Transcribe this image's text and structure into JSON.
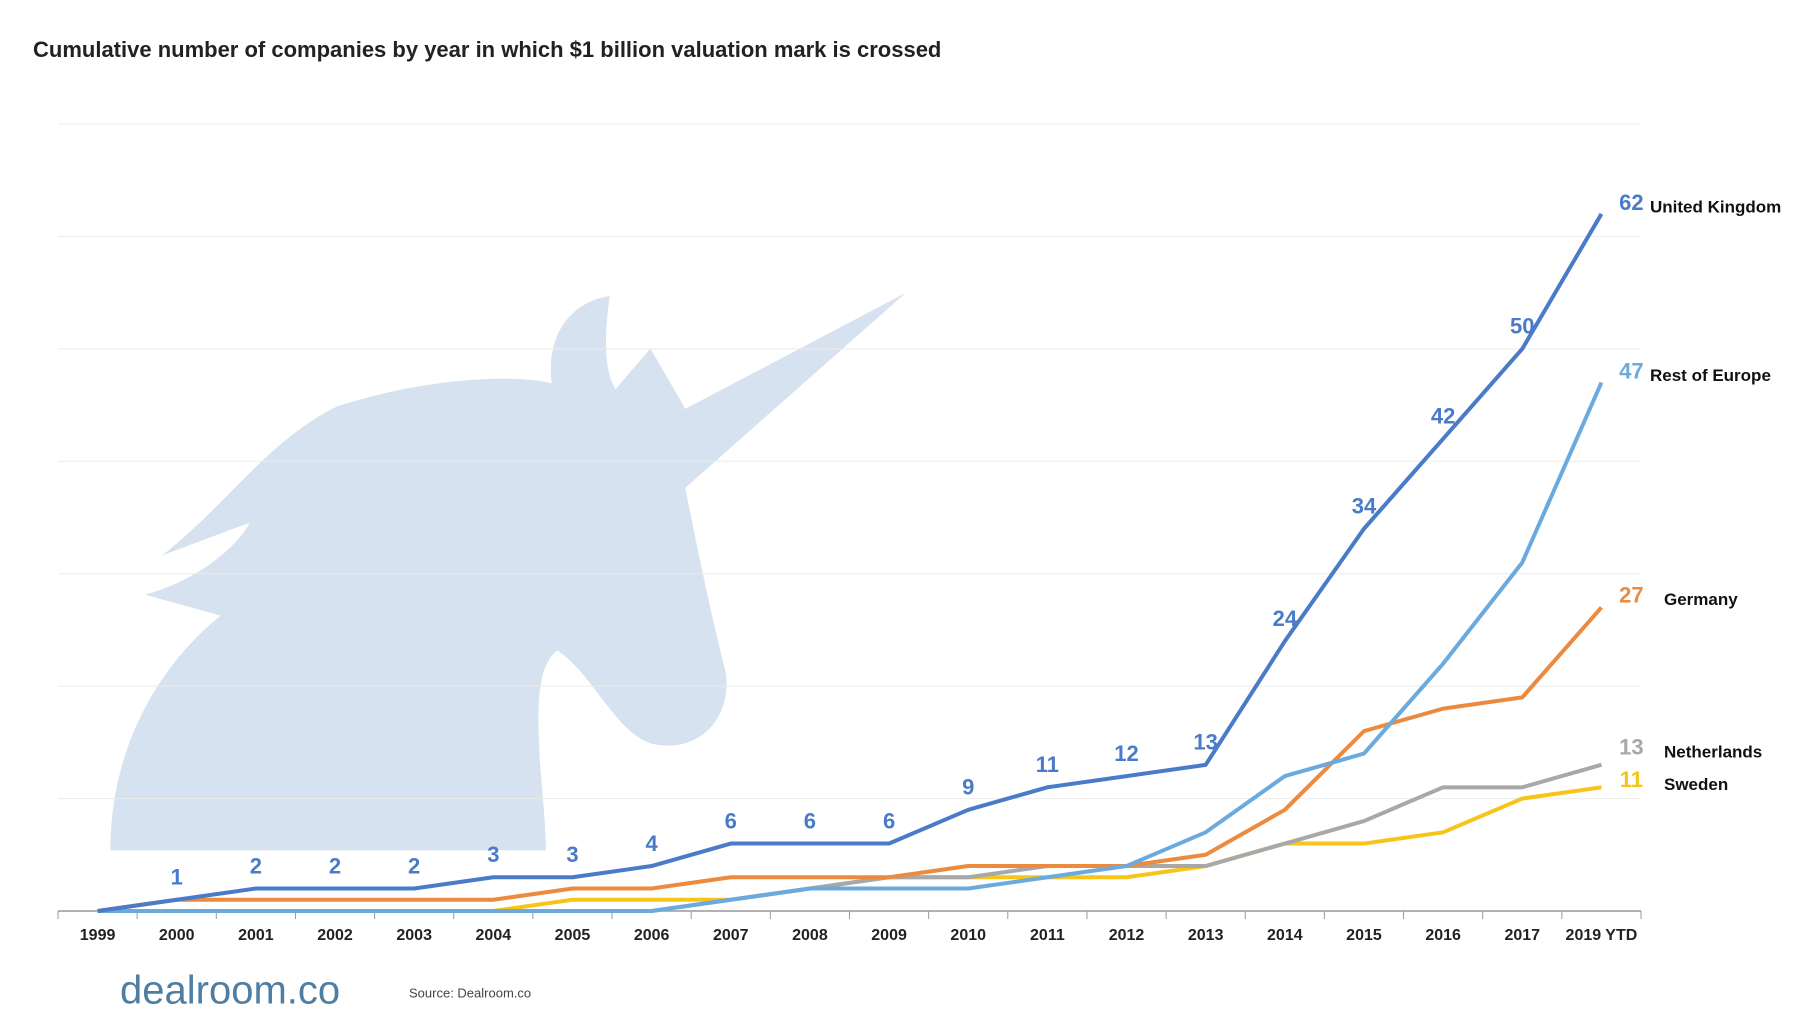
{
  "chart_data": {
    "type": "line",
    "title": "Cumulative number of companies by year in which $1 billion valuation mark is crossed",
    "categories": [
      "1999",
      "2000",
      "2001",
      "2002",
      "2003",
      "2004",
      "2005",
      "2006",
      "2007",
      "2008",
      "2009",
      "2010",
      "2011",
      "2012",
      "2013",
      "2014",
      "2015",
      "2016",
      "2017",
      "2019 YTD"
    ],
    "ylim": [
      0,
      70
    ],
    "yticks": [
      0,
      10,
      20,
      30,
      40,
      50,
      60,
      70
    ],
    "grid": true,
    "series": [
      {
        "name": "United Kingdom",
        "color": "#4a7bc8",
        "values": [
          0,
          1,
          2,
          2,
          2,
          3,
          3,
          4,
          6,
          6,
          6,
          9,
          11,
          12,
          13,
          24,
          34,
          42,
          50,
          62
        ]
      },
      {
        "name": "Rest of Europe",
        "color": "#6aaade",
        "values": [
          0,
          0,
          0,
          0,
          0,
          0,
          0,
          0,
          1,
          2,
          2,
          2,
          3,
          4,
          7,
          12,
          14,
          22,
          31,
          47
        ]
      },
      {
        "name": "Germany",
        "color": "#ec8a3f",
        "values": [
          0,
          1,
          1,
          1,
          1,
          1,
          2,
          2,
          3,
          3,
          3,
          4,
          4,
          4,
          5,
          9,
          16,
          18,
          19,
          27
        ]
      },
      {
        "name": "Netherlands",
        "color": "#a8a8a8",
        "values": [
          0,
          0,
          0,
          0,
          0,
          0,
          0,
          0,
          1,
          2,
          3,
          3,
          4,
          4,
          4,
          6,
          8,
          11,
          11,
          13
        ]
      },
      {
        "name": "Sweden",
        "color": "#f6c518",
        "values": [
          0,
          0,
          0,
          0,
          0,
          0,
          1,
          1,
          1,
          2,
          3,
          3,
          3,
          3,
          4,
          6,
          6,
          7,
          10,
          11
        ]
      }
    ],
    "logo": "dealroom.co",
    "source": "Source: Dealroom.co"
  }
}
